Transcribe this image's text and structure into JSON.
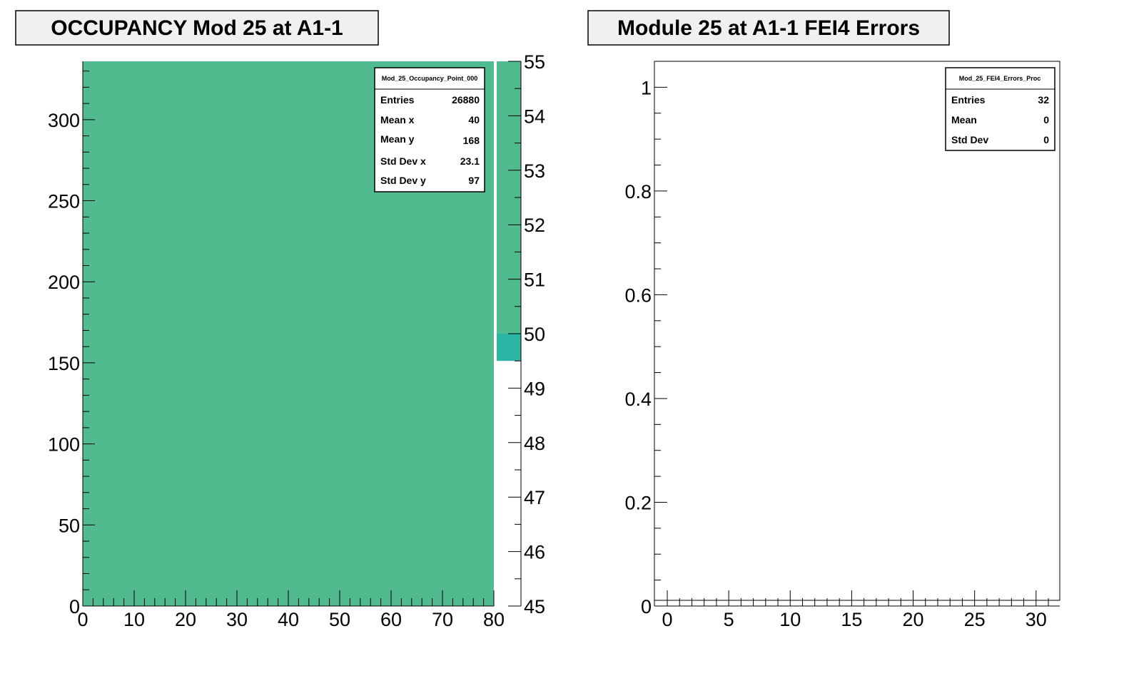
{
  "chart_data": [
    {
      "type": "heatmap",
      "title": "OCCUPANCY Mod 25 at A1-1",
      "xlim": [
        0,
        80
      ],
      "ylim": [
        0,
        336
      ],
      "x_ticks": [
        "0",
        "10",
        "20",
        "30",
        "40",
        "50",
        "60",
        "70",
        "80"
      ],
      "y_ticks": [
        "0",
        "50",
        "100",
        "150",
        "200",
        "250",
        "300"
      ],
      "fill_value": 54,
      "fill_color": "#52ba8f",
      "colorbar": {
        "range": [
          45,
          55
        ],
        "ticks": [
          "45",
          "46",
          "47",
          "48",
          "49",
          "50",
          "51",
          "52",
          "53",
          "54",
          "55"
        ],
        "bands": [
          {
            "from": 49.5,
            "to": 50,
            "color": "#2ab5a5"
          },
          {
            "from": 50,
            "to": 55,
            "color": "#52ba8f"
          }
        ]
      },
      "stats": {
        "name": "Mod_25_Occupancy_Point_000",
        "rows": [
          {
            "key": "Entries",
            "value": "26880"
          },
          {
            "key": "Mean x",
            "value": "40"
          },
          {
            "key": "Mean y",
            "value": "168"
          },
          {
            "key": "Std Dev x",
            "value": "23.1"
          },
          {
            "key": "Std Dev y",
            "value": "97"
          }
        ]
      }
    },
    {
      "type": "bar",
      "title": "Module 25 at A1-1 FEI4 Errors",
      "xlim": [
        0,
        32
      ],
      "ylim": [
        0,
        1.05
      ],
      "x_ticks": [
        "0",
        "5",
        "10",
        "15",
        "20",
        "25",
        "30"
      ],
      "y_ticks": [
        "0",
        "0.2",
        "0.4",
        "0.6",
        "0.8",
        "1"
      ],
      "values": [],
      "stats": {
        "name": "Mod_25_FEI4_Errors_Proc",
        "rows": [
          {
            "key": "Entries",
            "value": "32"
          },
          {
            "key": "Mean",
            "value": "0"
          },
          {
            "key": "Std Dev",
            "value": "0"
          }
        ]
      }
    }
  ]
}
